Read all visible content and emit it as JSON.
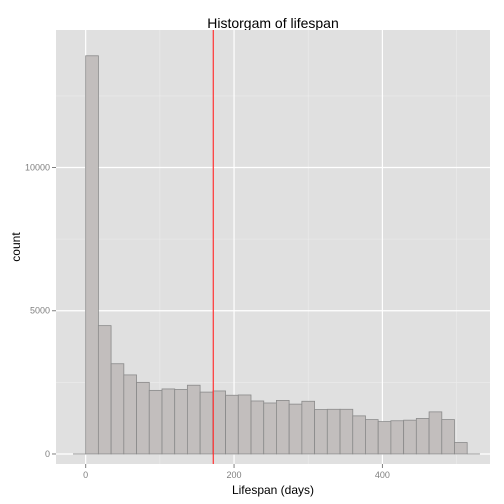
{
  "chart_data": {
    "type": "bar",
    "title": "Historgam of lifespan",
    "xlabel": "Lifespan (days)",
    "ylabel": "count",
    "xlim": [
      -40,
      545
    ],
    "ylim": [
      -350,
      14800
    ],
    "x_ticks": [
      0,
      200,
      400
    ],
    "y_ticks": [
      0,
      5000,
      10000
    ],
    "grid": true,
    "bin_width": 17.14,
    "bins": [
      {
        "start": -17.1,
        "count": 0
      },
      {
        "start": 0,
        "count": 13900
      },
      {
        "start": 17.1,
        "count": 4480
      },
      {
        "start": 34.3,
        "count": 3150
      },
      {
        "start": 51.4,
        "count": 2760
      },
      {
        "start": 68.6,
        "count": 2500
      },
      {
        "start": 85.7,
        "count": 2220
      },
      {
        "start": 102.9,
        "count": 2270
      },
      {
        "start": 120,
        "count": 2250
      },
      {
        "start": 137.1,
        "count": 2400
      },
      {
        "start": 154.3,
        "count": 2160
      },
      {
        "start": 171.4,
        "count": 2200
      },
      {
        "start": 188.6,
        "count": 2050
      },
      {
        "start": 205.7,
        "count": 2060
      },
      {
        "start": 222.9,
        "count": 1850
      },
      {
        "start": 240,
        "count": 1780
      },
      {
        "start": 257.1,
        "count": 1870
      },
      {
        "start": 274.3,
        "count": 1740
      },
      {
        "start": 291.4,
        "count": 1840
      },
      {
        "start": 308.6,
        "count": 1550
      },
      {
        "start": 325.7,
        "count": 1560
      },
      {
        "start": 342.9,
        "count": 1560
      },
      {
        "start": 360,
        "count": 1330
      },
      {
        "start": 377.1,
        "count": 1200
      },
      {
        "start": 394.3,
        "count": 1130
      },
      {
        "start": 411.4,
        "count": 1160
      },
      {
        "start": 428.6,
        "count": 1180
      },
      {
        "start": 445.7,
        "count": 1240
      },
      {
        "start": 462.9,
        "count": 1470
      },
      {
        "start": 480,
        "count": 1200
      },
      {
        "start": 497.1,
        "count": 400
      },
      {
        "start": 514.3,
        "count": 0
      }
    ],
    "reference_line": {
      "x": 172,
      "color": "#ff3333"
    },
    "colors": {
      "panel_bg": "#e0e0e0",
      "grid_major": "#ffffff",
      "grid_minor": "#ececec",
      "bar_fill": "#c2bebd",
      "bar_stroke": "#8a8a8a"
    }
  }
}
